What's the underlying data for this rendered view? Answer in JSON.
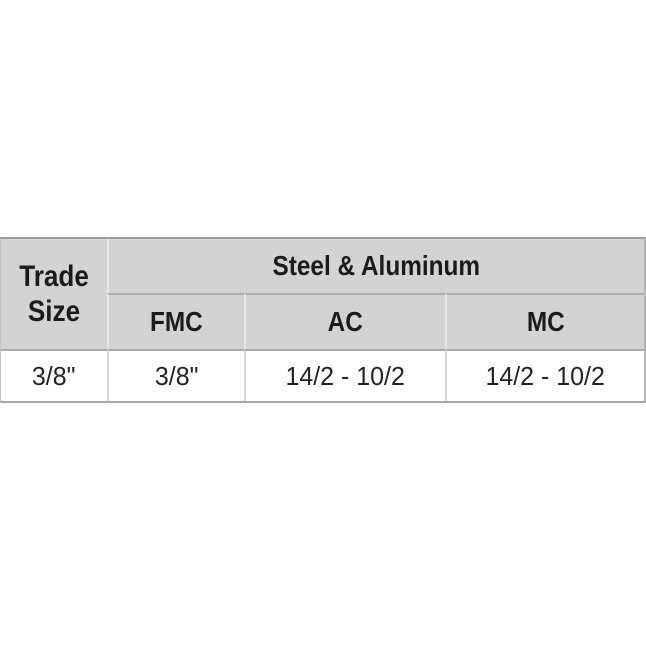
{
  "chart_data": {
    "type": "table",
    "title": "",
    "corner_header": "Trade Size",
    "group_header": "Steel & Aluminum",
    "columns": [
      "FMC",
      "AC",
      "MC"
    ],
    "rows": [
      {
        "trade_size": "3/8\"",
        "fmc": "3/8\"",
        "ac": "14/2 - 10/2",
        "mc": "14/2 - 10/2"
      }
    ]
  },
  "table": {
    "corner": {
      "line1": "Trade",
      "line2": "Size"
    },
    "group_header": "Steel & Aluminum",
    "column_headers": [
      "FMC",
      "AC",
      "MC"
    ],
    "data_row": [
      "3/8\"",
      "3/8\"",
      "14/2 - 10/2",
      "14/2 - 10/2"
    ]
  },
  "colors": {
    "page_bg": "#ffffff",
    "header_bg": "#d2d3d3",
    "header_text": "#1b1b1b",
    "data_text": "#232323",
    "outer_border_top": "#9c9e9e",
    "outer_border_bottom": "#a6a8a8",
    "outer_border_right": "#b3b5b5",
    "row_divider": "#a9abab",
    "col_divider_header": "#e6e7e7",
    "col_divider_data": "#d3d6d8"
  }
}
